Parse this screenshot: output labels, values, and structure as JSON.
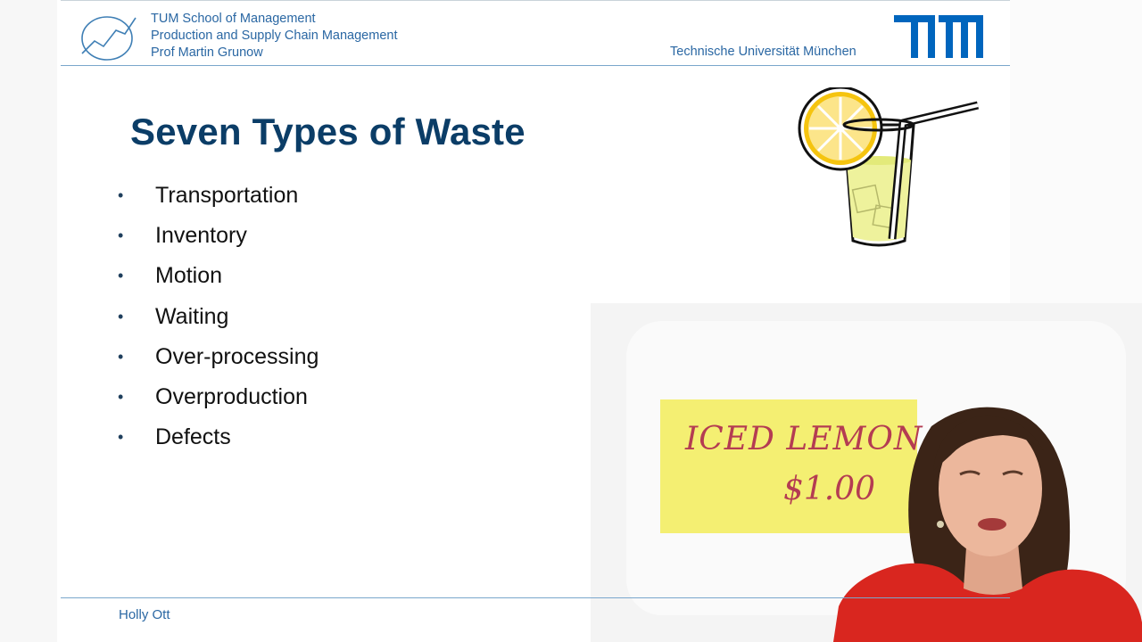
{
  "header": {
    "school_lines": [
      "TUM School of Management",
      "Production and Supply Chain Management",
      "Prof Martin Grunow"
    ],
    "university": "Technische Universität München"
  },
  "slide": {
    "title": "Seven Types of Waste",
    "bullets": [
      "Transportation",
      "Inventory",
      "Motion",
      "Waiting",
      "Over-processing",
      "Overproduction",
      "Defects"
    ]
  },
  "video": {
    "sign_line1": "ICED LEMON",
    "sign_line2": "$1.00"
  },
  "footer": {
    "presenter_name": "Holly Ott"
  },
  "icons": [
    "school-logo-icon",
    "tum-logo-icon",
    "lemonade-glass-icon"
  ],
  "colors": {
    "title": "#0b3d67",
    "header_text": "#2a67a3",
    "tum_blue": "#0065bd",
    "sign_yellow": "#f4ef72",
    "sign_text": "#b43c52",
    "dress_red": "#d9261f"
  }
}
